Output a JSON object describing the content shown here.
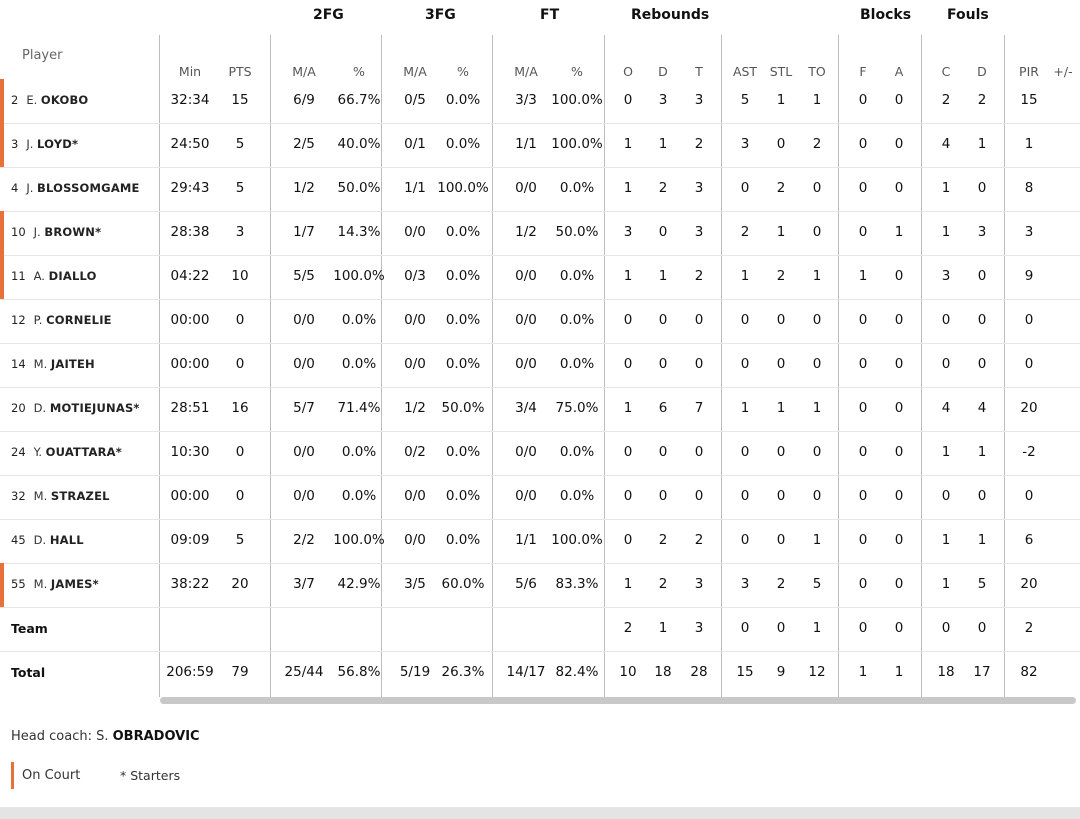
{
  "groups": [
    "2FG",
    "3FG",
    "FT",
    "Rebounds",
    "Blocks",
    "Fouls"
  ],
  "header_player": "Player",
  "headers": [
    "Min",
    "PTS",
    "M/A",
    "%",
    "M/A",
    "%",
    "M/A",
    "%",
    "O",
    "D",
    "T",
    "AST",
    "STL",
    "TO",
    "F",
    "A",
    "C",
    "D",
    "PIR",
    "+/-"
  ],
  "players": [
    {
      "num": "2",
      "first": "E.",
      "last": "OKOBO",
      "on_court": true,
      "stats": [
        "32:34",
        "15",
        "6/9",
        "66.7%",
        "0/5",
        "0.0%",
        "3/3",
        "100.0%",
        "0",
        "3",
        "3",
        "5",
        "1",
        "1",
        "0",
        "0",
        "2",
        "2",
        "15",
        ""
      ]
    },
    {
      "num": "3",
      "first": "J.",
      "last": "LOYD*",
      "on_court": true,
      "stats": [
        "24:50",
        "5",
        "2/5",
        "40.0%",
        "0/1",
        "0.0%",
        "1/1",
        "100.0%",
        "1",
        "1",
        "2",
        "3",
        "0",
        "2",
        "0",
        "0",
        "4",
        "1",
        "1",
        ""
      ]
    },
    {
      "num": "4",
      "first": "J.",
      "last": "BLOSSOMGAME",
      "on_court": false,
      "stats": [
        "29:43",
        "5",
        "1/2",
        "50.0%",
        "1/1",
        "100.0%",
        "0/0",
        "0.0%",
        "1",
        "2",
        "3",
        "0",
        "2",
        "0",
        "0",
        "0",
        "1",
        "0",
        "8",
        ""
      ]
    },
    {
      "num": "10",
      "first": "J.",
      "last": "BROWN*",
      "on_court": true,
      "stats": [
        "28:38",
        "3",
        "1/7",
        "14.3%",
        "0/0",
        "0.0%",
        "1/2",
        "50.0%",
        "3",
        "0",
        "3",
        "2",
        "1",
        "0",
        "0",
        "1",
        "1",
        "3",
        "3",
        ""
      ]
    },
    {
      "num": "11",
      "first": "A.",
      "last": "DIALLO",
      "on_court": true,
      "stats": [
        "04:22",
        "10",
        "5/5",
        "100.0%",
        "0/3",
        "0.0%",
        "0/0",
        "0.0%",
        "1",
        "1",
        "2",
        "1",
        "2",
        "1",
        "1",
        "0",
        "3",
        "0",
        "9",
        ""
      ]
    },
    {
      "num": "12",
      "first": "P.",
      "last": "CORNELIE",
      "on_court": false,
      "stats": [
        "00:00",
        "0",
        "0/0",
        "0.0%",
        "0/0",
        "0.0%",
        "0/0",
        "0.0%",
        "0",
        "0",
        "0",
        "0",
        "0",
        "0",
        "0",
        "0",
        "0",
        "0",
        "0",
        ""
      ]
    },
    {
      "num": "14",
      "first": "M.",
      "last": "JAITEH",
      "on_court": false,
      "stats": [
        "00:00",
        "0",
        "0/0",
        "0.0%",
        "0/0",
        "0.0%",
        "0/0",
        "0.0%",
        "0",
        "0",
        "0",
        "0",
        "0",
        "0",
        "0",
        "0",
        "0",
        "0",
        "0",
        ""
      ]
    },
    {
      "num": "20",
      "first": "D.",
      "last": "MOTIEJUNAS*",
      "on_court": false,
      "stats": [
        "28:51",
        "16",
        "5/7",
        "71.4%",
        "1/2",
        "50.0%",
        "3/4",
        "75.0%",
        "1",
        "6",
        "7",
        "1",
        "1",
        "1",
        "0",
        "0",
        "4",
        "4",
        "20",
        ""
      ]
    },
    {
      "num": "24",
      "first": "Y.",
      "last": "OUATTARA*",
      "on_court": false,
      "stats": [
        "10:30",
        "0",
        "0/0",
        "0.0%",
        "0/2",
        "0.0%",
        "0/0",
        "0.0%",
        "0",
        "0",
        "0",
        "0",
        "0",
        "0",
        "0",
        "0",
        "1",
        "1",
        "-2",
        ""
      ]
    },
    {
      "num": "32",
      "first": "M.",
      "last": "STRAZEL",
      "on_court": false,
      "stats": [
        "00:00",
        "0",
        "0/0",
        "0.0%",
        "0/0",
        "0.0%",
        "0/0",
        "0.0%",
        "0",
        "0",
        "0",
        "0",
        "0",
        "0",
        "0",
        "0",
        "0",
        "0",
        "0",
        ""
      ]
    },
    {
      "num": "45",
      "first": "D.",
      "last": "HALL",
      "on_court": false,
      "stats": [
        "09:09",
        "5",
        "2/2",
        "100.0%",
        "0/0",
        "0.0%",
        "1/1",
        "100.0%",
        "0",
        "2",
        "2",
        "0",
        "0",
        "1",
        "0",
        "0",
        "1",
        "1",
        "6",
        ""
      ]
    },
    {
      "num": "55",
      "first": "M.",
      "last": "JAMES*",
      "on_court": true,
      "stats": [
        "38:22",
        "20",
        "3/7",
        "42.9%",
        "3/5",
        "60.0%",
        "5/6",
        "83.3%",
        "1",
        "2",
        "3",
        "3",
        "2",
        "5",
        "0",
        "0",
        "1",
        "5",
        "20",
        ""
      ]
    }
  ],
  "team": {
    "label": "Team",
    "stats": [
      "",
      "",
      "",
      "",
      "",
      "",
      "",
      "",
      "2",
      "1",
      "3",
      "0",
      "0",
      "1",
      "0",
      "0",
      "0",
      "0",
      "2",
      ""
    ]
  },
  "total": {
    "label": "Total",
    "stats": [
      "206:59",
      "79",
      "25/44",
      "56.8%",
      "5/19",
      "26.3%",
      "14/17",
      "82.4%",
      "10",
      "18",
      "28",
      "15",
      "9",
      "12",
      "1",
      "1",
      "18",
      "17",
      "82",
      ""
    ]
  },
  "coach": {
    "prefix": "Head coach: S.",
    "name": "OBRADOVIC"
  },
  "legend": {
    "on_court": "On Court",
    "starters": "* Starters"
  },
  "colors": {
    "on_court": "#e8703a"
  }
}
